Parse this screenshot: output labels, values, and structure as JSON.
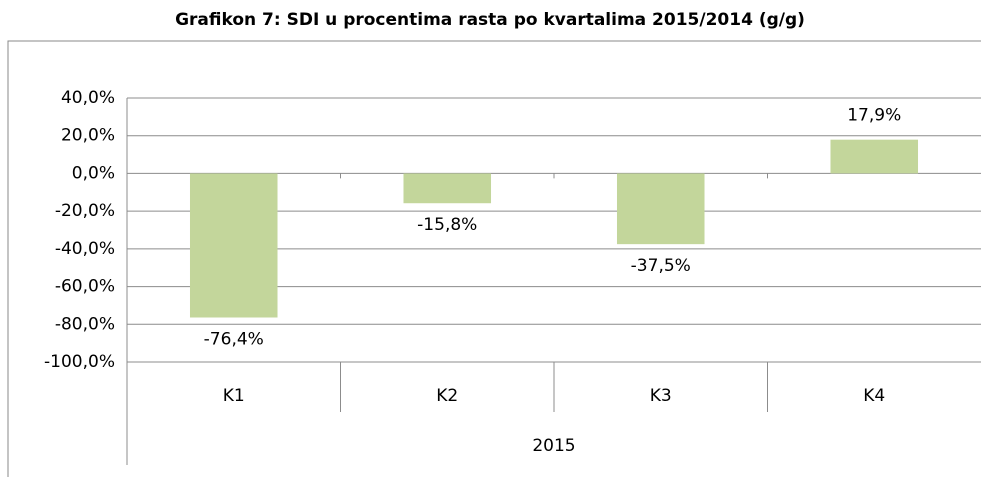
{
  "chart_data": {
    "type": "bar",
    "title": "Grafikon 7: SDI u procentima rasta po kvartalima 2015/2014 (g/g)",
    "categories": [
      "K1",
      "K2",
      "K3",
      "K4"
    ],
    "group_label": "2015",
    "values": [
      -76.4,
      -15.8,
      -37.5,
      17.9
    ],
    "value_labels": [
      "-76,4%",
      "-15,8%",
      "-37,5%",
      "17,9%"
    ],
    "color": "#c3d69b",
    "ylim": [
      -100,
      40
    ],
    "yticks": [
      {
        "value": -100,
        "label": "-100,0%"
      },
      {
        "value": -80,
        "label": "-80,0%"
      },
      {
        "value": -60,
        "label": "-60,0%"
      },
      {
        "value": -40,
        "label": "-40,0%"
      },
      {
        "value": -20,
        "label": "-20,0%"
      },
      {
        "value": 0,
        "label": "0,0%"
      },
      {
        "value": 20,
        "label": "20,0%"
      },
      {
        "value": 40,
        "label": "40,0%"
      }
    ],
    "grid": true
  }
}
